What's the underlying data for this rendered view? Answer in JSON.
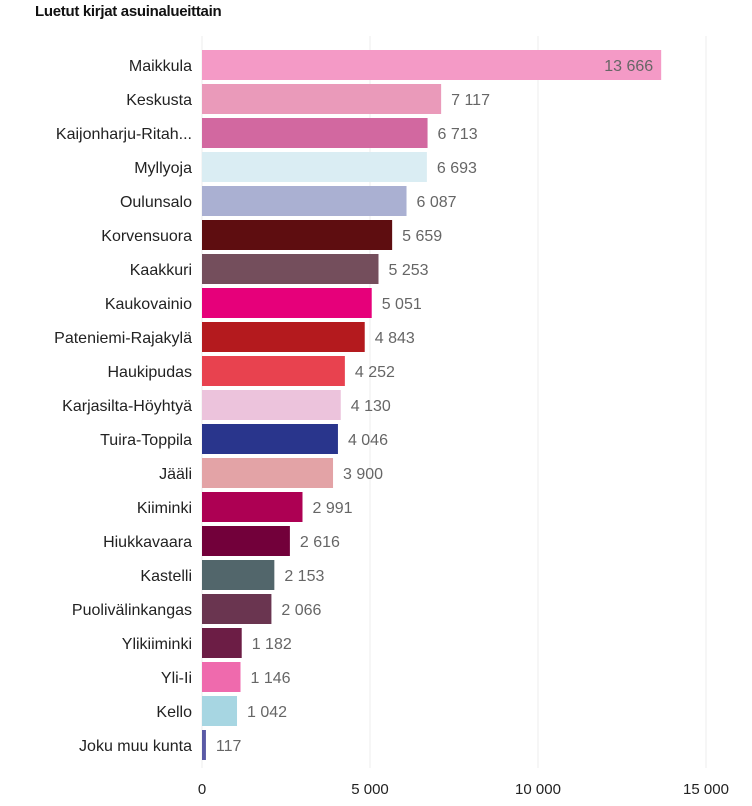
{
  "chart_data": {
    "type": "bar",
    "orientation": "horizontal",
    "title": "Luetut kirjat asuinalueittain",
    "xlabel": "",
    "ylabel": "",
    "xlim": [
      0,
      15000
    ],
    "x_ticks": [
      "0",
      "5 000",
      "10 000",
      "15 000"
    ],
    "x_tick_values": [
      0,
      5000,
      10000,
      15000
    ],
    "grid": "vertical",
    "categories": [
      "Maikkula",
      "Keskusta",
      "Kaijonharju-Ritah...",
      "Myllyoja",
      "Oulunsalo",
      "Korvensuora",
      "Kaakkuri",
      "Kaukovainio",
      "Pateniemi-Rajakylä",
      "Haukipudas",
      "Karjasilta-Höyhtyä",
      "Tuira-Toppila",
      "Jääli",
      "Kiiminki",
      "Hiukkavaara",
      "Kastelli",
      "Puolivälinkangas",
      "Ylikiiminki",
      "Yli-Ii",
      "Kello",
      "Joku muu kunta"
    ],
    "values": [
      13666,
      7117,
      6713,
      6693,
      6087,
      5659,
      5253,
      5051,
      4843,
      4252,
      4130,
      4046,
      3900,
      2991,
      2616,
      2153,
      2066,
      1182,
      1146,
      1042,
      117
    ],
    "value_labels": [
      "13 666",
      "7 117",
      "6 713",
      "6 693",
      "6 087",
      "5 659",
      "5 253",
      "5 051",
      "4 843",
      "4 252",
      "4 130",
      "4 046",
      "3 900",
      "2 991",
      "2 616",
      "2 153",
      "2 066",
      "1 182",
      "1 146",
      "1 042",
      "117"
    ],
    "colors": [
      "#f49ac6",
      "#ea9aba",
      "#d268a0",
      "#daedf3",
      "#aab0d2",
      "#5e0d10",
      "#744e5c",
      "#e6007a",
      "#b41a1e",
      "#e8424f",
      "#ecc3dc",
      "#29358c",
      "#e3a3a6",
      "#ad0053",
      "#72003a",
      "#52666b",
      "#6a3550",
      "#6c1d45",
      "#ef6aad",
      "#a7d6e2",
      "#5a5aa6"
    ]
  }
}
